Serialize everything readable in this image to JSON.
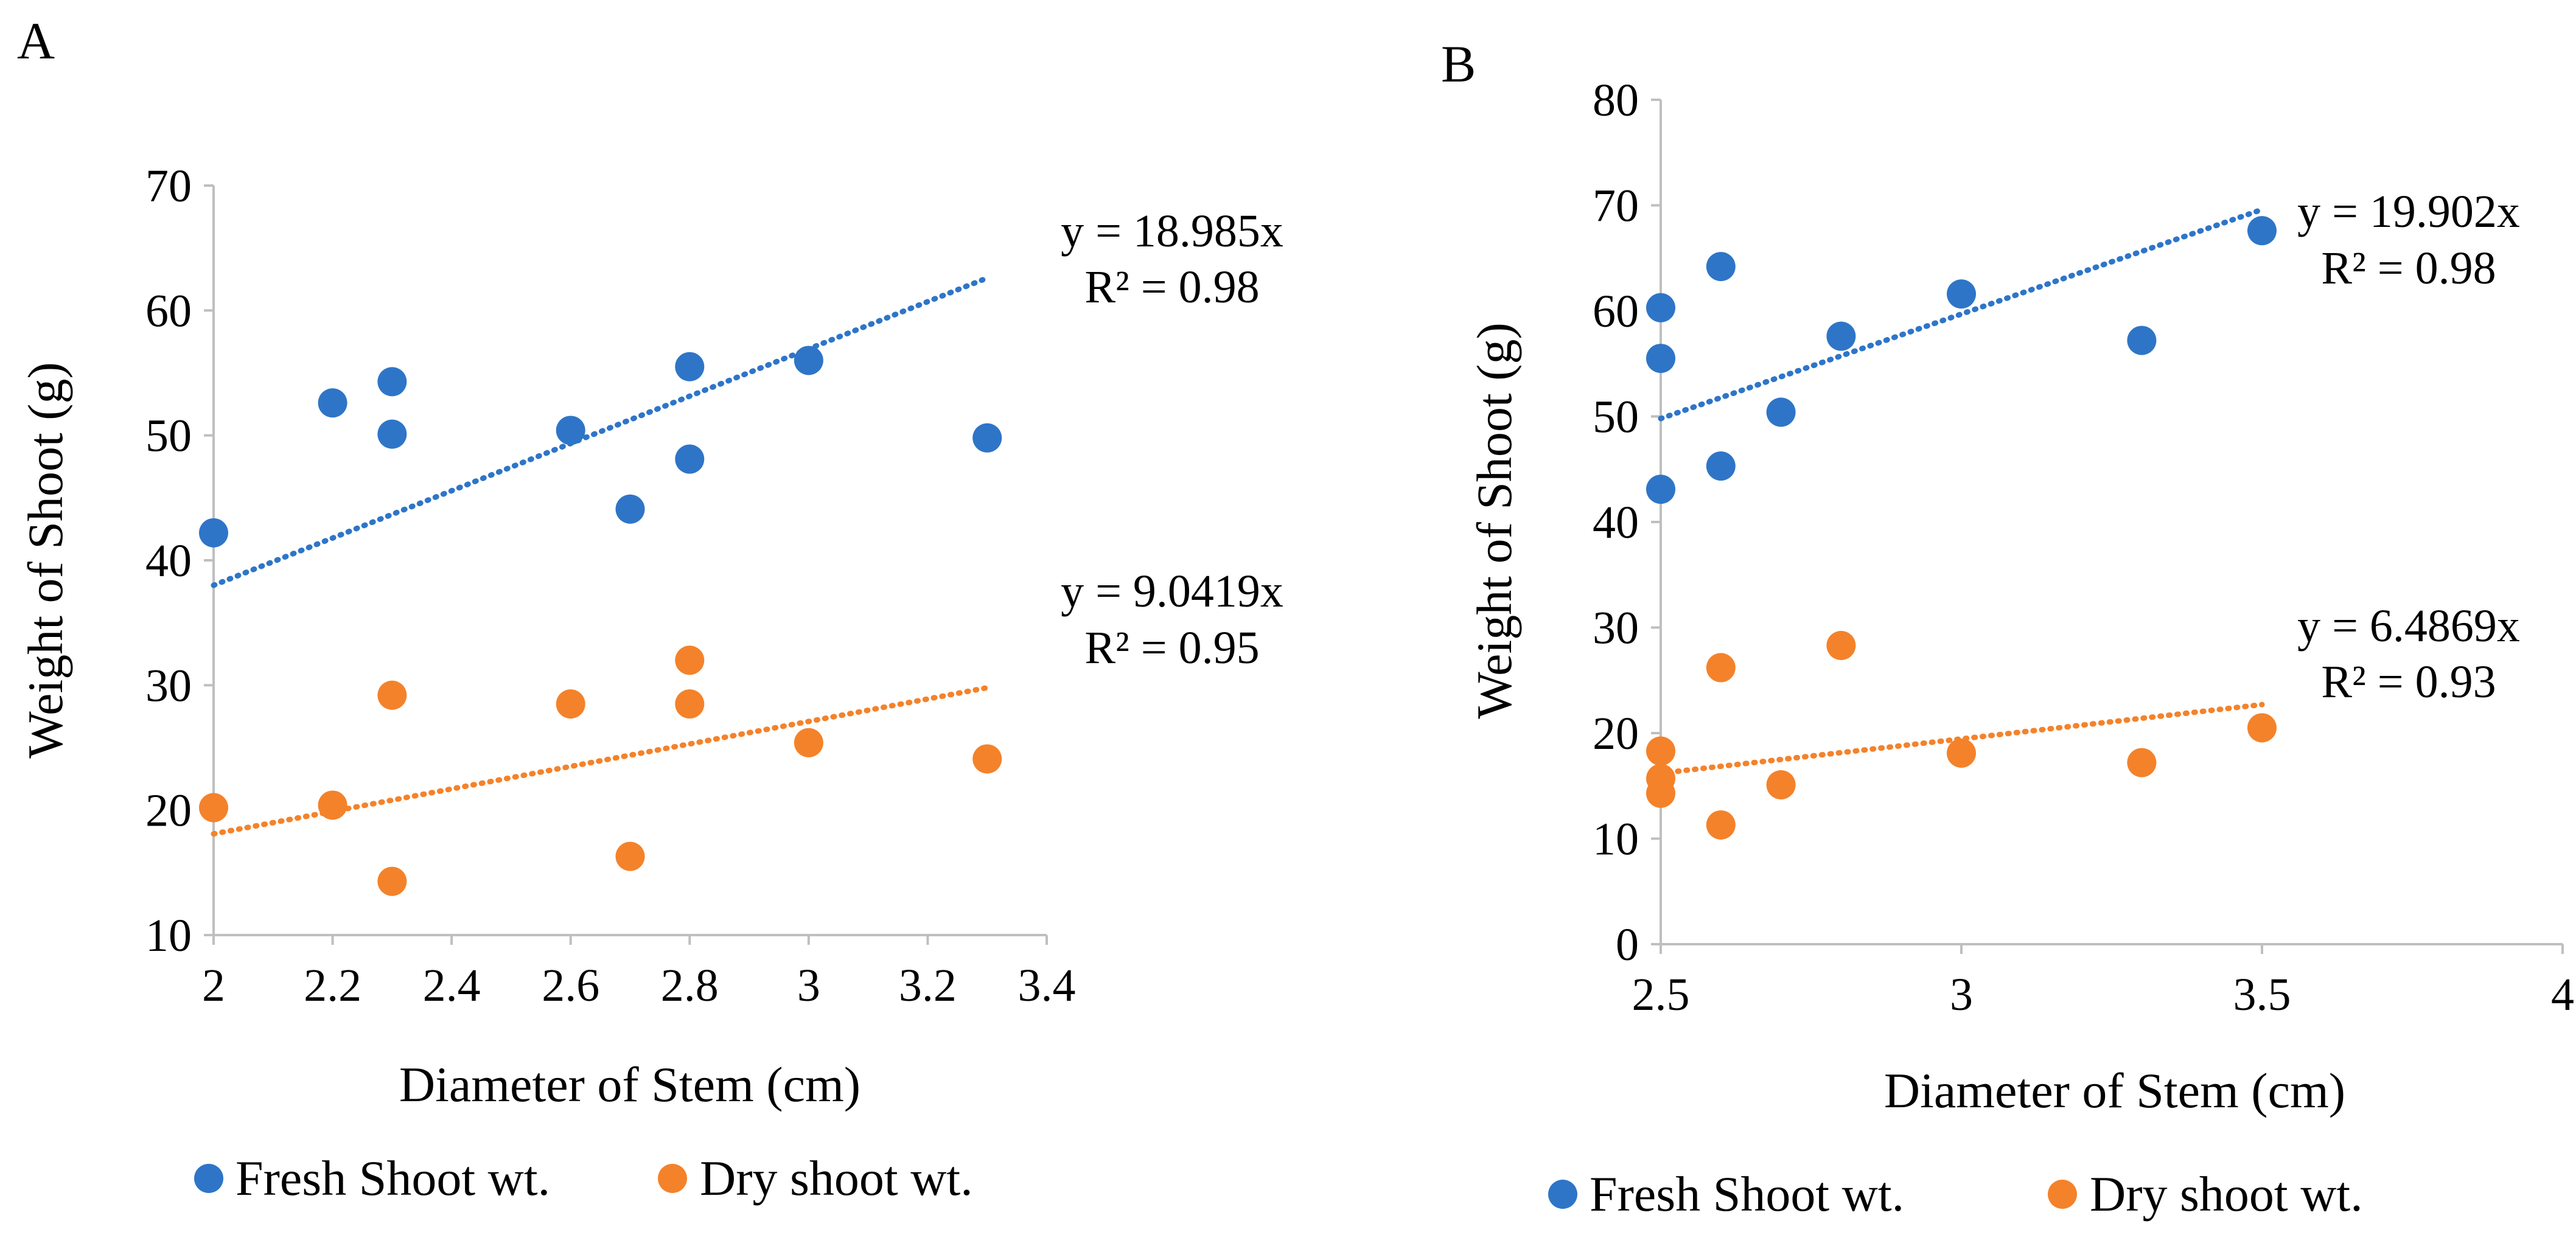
{
  "colors": {
    "fresh": "#2E75C8",
    "dry": "#F4822A",
    "axis": "#bfbfbf"
  },
  "chart_data": [
    {
      "panel": "A",
      "type": "scatter",
      "xlabel": "Diameter of Stem (cm)",
      "ylabel": "Weight of Shoot (g)",
      "xlim": [
        2,
        3.4
      ],
      "ylim": [
        10,
        70
      ],
      "xticks": [
        2,
        2.2,
        2.4,
        2.6,
        2.8,
        3,
        3.2,
        3.4
      ],
      "xtick_labels": [
        "2",
        "2.2",
        "2.4",
        "2.6",
        "2.8",
        "3",
        "3.2",
        "3.4"
      ],
      "yticks": [
        10,
        20,
        30,
        40,
        50,
        60,
        70
      ],
      "ytick_labels": [
        "10",
        "20",
        "30",
        "40",
        "50",
        "60",
        "70"
      ],
      "legend": [
        "Fresh Shoot wt.",
        "Dry shoot wt."
      ],
      "series": [
        {
          "name": "Fresh Shoot wt.",
          "color_key": "fresh",
          "points": [
            [
              2,
              42.2
            ],
            [
              2.2,
              52.6
            ],
            [
              2.3,
              54.3
            ],
            [
              2.3,
              50.1
            ],
            [
              2.6,
              50.4
            ],
            [
              2.7,
              44.1
            ],
            [
              2.8,
              55.5
            ],
            [
              2.8,
              48.1
            ],
            [
              3,
              56
            ],
            [
              3.3,
              49.8
            ]
          ],
          "trendline": {
            "x": [
              2,
              3.3
            ],
            "y": [
              38,
              62.6
            ],
            "equation": "y = 18.985x",
            "r2": "R² = 0.98"
          }
        },
        {
          "name": "Dry shoot wt.",
          "color_key": "dry",
          "points": [
            [
              2,
              20.2
            ],
            [
              2.2,
              20.4
            ],
            [
              2.3,
              29.2
            ],
            [
              2.3,
              14.3
            ],
            [
              2.6,
              28.5
            ],
            [
              2.7,
              16.3
            ],
            [
              2.8,
              32
            ],
            [
              2.8,
              28.5
            ],
            [
              3,
              25.4
            ],
            [
              3.3,
              24.1
            ]
          ],
          "trendline": {
            "x": [
              2,
              3.3
            ],
            "y": [
              18.1,
              29.8
            ],
            "equation": "y = 9.0419x",
            "r2": "R² = 0.95"
          }
        }
      ]
    },
    {
      "panel": "B",
      "type": "scatter",
      "xlabel": "Diameter of Stem (cm)",
      "ylabel": "Weight of Shoot (g)",
      "xlim": [
        2.5,
        4
      ],
      "ylim": [
        0,
        80
      ],
      "xticks": [
        2.5,
        3,
        3.5,
        4
      ],
      "xtick_labels": [
        "2.5",
        "3",
        "3.5",
        "4"
      ],
      "yticks": [
        0,
        10,
        20,
        30,
        40,
        50,
        60,
        70,
        80
      ],
      "ytick_labels": [
        "0",
        "10",
        "20",
        "30",
        "40",
        "50",
        "60",
        "70",
        "80"
      ],
      "legend": [
        "Fresh Shoot wt.",
        "Dry shoot wt."
      ],
      "series": [
        {
          "name": "Fresh Shoot wt.",
          "color_key": "fresh",
          "points": [
            [
              2.5,
              60.3
            ],
            [
              2.5,
              55.5
            ],
            [
              2.5,
              43.1
            ],
            [
              2.6,
              64.2
            ],
            [
              2.6,
              45.3
            ],
            [
              2.7,
              50.4
            ],
            [
              2.8,
              57.6
            ],
            [
              3,
              61.6
            ],
            [
              3.3,
              57.2
            ],
            [
              3.5,
              67.6
            ]
          ],
          "trendline": {
            "x": [
              2.5,
              3.5
            ],
            "y": [
              49.8,
              69.6
            ],
            "equation": "y = 19.902x",
            "r2": "R² = 0.98"
          }
        },
        {
          "name": "Dry shoot wt.",
          "color_key": "dry",
          "points": [
            [
              2.5,
              18.3
            ],
            [
              2.5,
              15.7
            ],
            [
              2.5,
              14.3
            ],
            [
              2.6,
              26.2
            ],
            [
              2.6,
              11.3
            ],
            [
              2.7,
              15.1
            ],
            [
              2.8,
              28.3
            ],
            [
              3,
              18.1
            ],
            [
              3.3,
              17.2
            ],
            [
              3.5,
              20.5
            ]
          ],
          "trendline": {
            "x": [
              2.5,
              3.5
            ],
            "y": [
              16.2,
              22.7
            ],
            "equation": "y = 6.4869x",
            "r2": "R² = 0.93"
          }
        }
      ]
    }
  ]
}
